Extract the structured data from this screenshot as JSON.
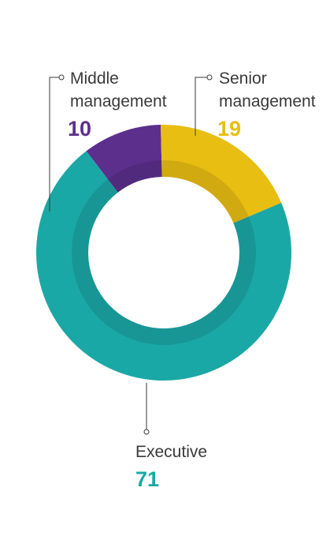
{
  "chart_data": {
    "type": "pie",
    "variant": "donut",
    "title": "",
    "slices": [
      {
        "label_line1": "Executive",
        "label_line2": "",
        "value": 71,
        "value_text": "71",
        "color": "#1aa8a6"
      },
      {
        "label_line1": "Middle",
        "label_line2": "management",
        "value": 10,
        "value_text": "10",
        "color": "#5c2f8c"
      },
      {
        "label_line1": "Senior",
        "label_line2": "management",
        "value": 19,
        "value_text": "19",
        "color": "#e9be13"
      }
    ],
    "label_color": "#3a3a3a"
  }
}
